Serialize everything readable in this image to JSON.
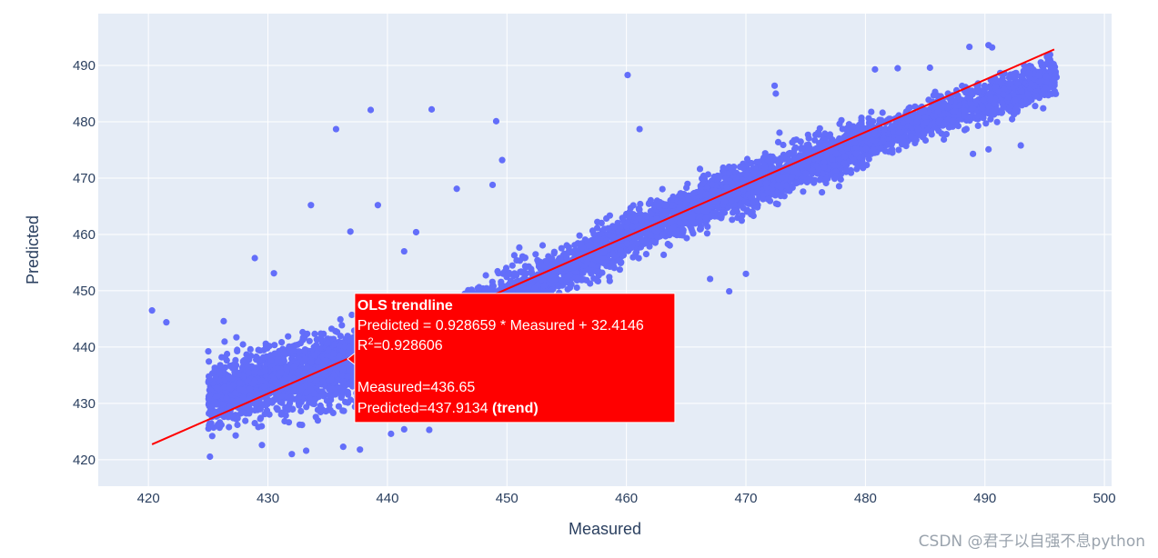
{
  "chart_data": {
    "type": "scatter",
    "xlabel": "Measured",
    "ylabel": "Predicted",
    "xlim": [
      415.8,
      500.6
    ],
    "ylim": [
      415.3,
      499.2
    ],
    "x_ticks": [
      420,
      430,
      440,
      450,
      460,
      470,
      480,
      490,
      500
    ],
    "y_ticks": [
      420,
      430,
      440,
      450,
      460,
      470,
      480,
      490
    ],
    "grid": true,
    "background": "#e5ecf6",
    "series": [
      {
        "type": "scatter",
        "color": "#636efa",
        "points": [
          [
            420.3,
            446.5
          ],
          [
            421.5,
            444.4
          ],
          [
            426.3,
            444.6
          ],
          [
            428.9,
            455.8
          ],
          [
            430.5,
            453.1
          ],
          [
            433.6,
            465.2
          ],
          [
            435.7,
            478.7
          ],
          [
            436.9,
            460.5
          ],
          [
            438.6,
            482.1
          ],
          [
            439.2,
            465.2
          ],
          [
            441.4,
            457.0
          ],
          [
            442.4,
            460.4
          ],
          [
            443.7,
            482.2
          ],
          [
            445.8,
            468.1
          ],
          [
            448.8,
            468.8
          ],
          [
            449.1,
            480.1
          ],
          [
            449.6,
            473.2
          ],
          [
            460.1,
            488.3
          ],
          [
            461.1,
            478.7
          ],
          [
            470.0,
            453.0
          ],
          [
            467.0,
            452.1
          ],
          [
            468.6,
            449.9
          ],
          [
            472.4,
            486.4
          ],
          [
            472.5,
            485.0
          ],
          [
            480.8,
            489.3
          ],
          [
            482.7,
            489.5
          ],
          [
            485.4,
            489.6
          ],
          [
            488.7,
            493.3
          ],
          [
            490.3,
            493.6
          ],
          [
            490.6,
            493.2
          ],
          [
            489.0,
            474.3
          ],
          [
            490.3,
            475.1
          ],
          [
            493.0,
            475.8
          ],
          [
            494.2,
            482.8
          ],
          [
            495.8,
            487.4
          ],
          [
            432.0,
            421.0
          ],
          [
            433.2,
            421.6
          ],
          [
            436.3,
            422.3
          ],
          [
            437.7,
            421.8
          ],
          [
            440.3,
            424.6
          ],
          [
            441.4,
            425.4
          ],
          [
            443.5,
            425.3
          ],
          [
            429.5,
            422.6
          ],
          [
            428.9,
            426.5
          ],
          [
            427.3,
            424.3
          ]
        ],
        "bands": [
          {
            "x_range": [
              425.0,
              438.0
            ],
            "center_at_x": [
              [
                425.0,
                431.0
              ],
              [
                438.0,
                437.5
              ]
            ],
            "spread": 5.5,
            "count": 1400
          },
          {
            "x_range": [
              438.0,
              460.0
            ],
            "center_at_x": [
              [
                438.0,
                436.5
              ],
              [
                460.0,
                459.0
              ]
            ],
            "spread": 4.0,
            "count": 1700
          },
          {
            "x_range": [
              460.0,
              480.0
            ],
            "center_at_x": [
              [
                460.0,
                460.0
              ],
              [
                480.0,
                476.5
              ]
            ],
            "spread": 3.6,
            "count": 1900
          },
          {
            "x_range": [
              480.0,
              496.0
            ],
            "center_at_x": [
              [
                480.0,
                476.5
              ],
              [
                496.0,
                488.0
              ]
            ],
            "spread": 3.0,
            "count": 1100
          }
        ]
      },
      {
        "name": "OLS trendline",
        "type": "line",
        "color": "#ff0000",
        "slope": 0.928659,
        "intercept": 32.4146,
        "x_range": [
          420.3,
          495.8
        ]
      }
    ],
    "tooltip": {
      "title": "OLS trendline",
      "equation": "Predicted = 0.928659 * Measured + 32.4146",
      "r2_label": "R",
      "r2_sup": "2",
      "r2_value": "=0.928606",
      "measured": "Measured=436.65",
      "predicted": "Predicted=437.9134",
      "trend_tag": "(trend)",
      "anchor": [
        436.65,
        437.9134
      ],
      "background": "#ff0000"
    }
  },
  "watermark": "CSDN @君子以自强不息python"
}
